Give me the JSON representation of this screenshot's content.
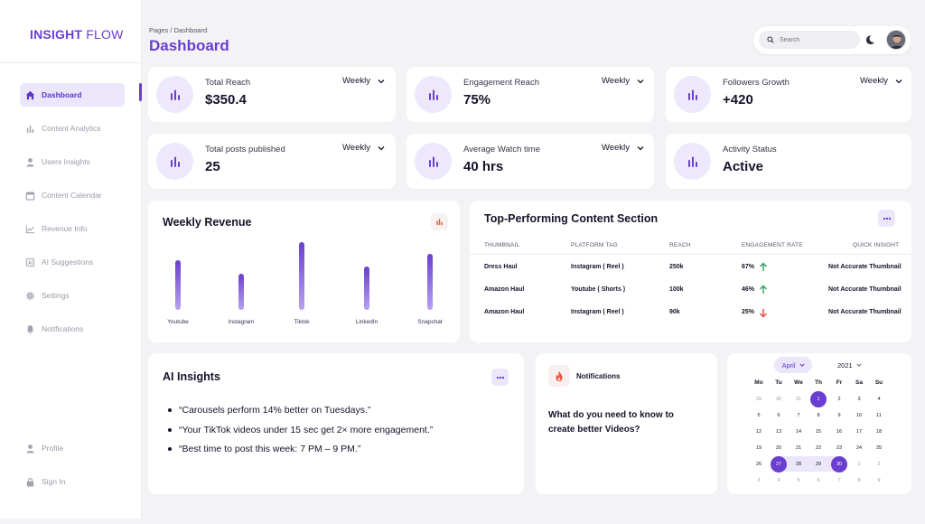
{
  "brand": {
    "bold": "INSIGHT",
    "light": " FLOW"
  },
  "nav": {
    "items": [
      {
        "label": "Dashboard",
        "icon": "home-icon",
        "active": true
      },
      {
        "label": "Content Analytics",
        "icon": "bar-chart-icon"
      },
      {
        "label": "Users Insights",
        "icon": "user-icon"
      },
      {
        "label": "Content Calendar",
        "icon": "calendar-icon"
      },
      {
        "label": "Revenue Info",
        "icon": "line-chart-icon"
      },
      {
        "label": "AI Suggestions",
        "icon": "ai-icon"
      },
      {
        "label": "Settings",
        "icon": "gear-icon"
      },
      {
        "label": "Notifications",
        "icon": "bell-icon"
      }
    ],
    "bottom": [
      {
        "label": "Profile",
        "icon": "user-icon"
      },
      {
        "label": "Sign In",
        "icon": "lock-icon"
      }
    ]
  },
  "header": {
    "breadcrumb": "Pages / Dashboard",
    "title": "Dashboard",
    "search_placeholder": "Search"
  },
  "stats": [
    {
      "label": "Total Reach",
      "value": "$350.4",
      "period": "Weekly"
    },
    {
      "label": "Engagement Reach",
      "value": "75%",
      "period": "Weekly"
    },
    {
      "label": "Followers Growth",
      "value": "+420",
      "period": "Weekly"
    },
    {
      "label": "Total posts published",
      "value": "25",
      "period": "Weekly"
    },
    {
      "label": "Average Watch time",
      "value": "40 hrs",
      "period": "Weekly"
    },
    {
      "label": "Activity Status",
      "value": "Active"
    }
  ],
  "revenue": {
    "title": "Weekly Revenue",
    "chart_data": {
      "type": "bar",
      "title": "Weekly Revenue",
      "categories": [
        "Youtube",
        "Instagram",
        "Tiktok",
        "LinkedIn",
        "Snapchat"
      ],
      "values": [
        55,
        40,
        75,
        48,
        62
      ],
      "ylim": [
        0,
        80
      ],
      "grid": false
    }
  },
  "top_content": {
    "title": "Top-Performing Content Section",
    "columns": [
      "THUMBNAIL",
      "PLATFORM TAG",
      "REACH",
      "ENGAGEMENT RATE",
      "QUICK INSIGHT"
    ],
    "rows": [
      {
        "thumbnail": "Dress Haul",
        "platform": "Instagram ( Reel )",
        "reach": "250k",
        "rate": "67%",
        "trend": "up",
        "insight": "Not Accurate Thumbnail"
      },
      {
        "thumbnail": "Amazon Haul",
        "platform": "Youtube ( Shorts )",
        "reach": "100k",
        "rate": "46%",
        "trend": "up",
        "insight": "Not Accurate Thumbnail"
      },
      {
        "thumbnail": "Amazon Haul",
        "platform": "Instagram ( Reel )",
        "reach": "90k",
        "rate": "25%",
        "trend": "down",
        "insight": "Not Accurate Thumbnail"
      }
    ],
    "colors": {
      "up": "#2ea05a",
      "down": "#e0473a"
    }
  },
  "ai_insights": {
    "title": "AI Insights",
    "items": [
      "“Carousels perform 14% better on Tuesdays.”",
      "“Your TikTok videos under 15 sec get 2× more engagement.”",
      "“Best time to post this week: 7 PM – 9 PM.”"
    ]
  },
  "notifications": {
    "title": "Notifications",
    "question": "What do you need to know to create better Videos?"
  },
  "calendar": {
    "month": "April",
    "year": "2021",
    "weekdays": [
      "Mo",
      "Tu",
      "We",
      "Th",
      "Fr",
      "Sa",
      "Su"
    ],
    "weeks": [
      [
        "29",
        "30",
        "31",
        "1",
        "2",
        "3",
        "4"
      ],
      [
        "5",
        "6",
        "7",
        "8",
        "9",
        "10",
        "11"
      ],
      [
        "12",
        "13",
        "14",
        "15",
        "16",
        "17",
        "18"
      ],
      [
        "19",
        "20",
        "21",
        "22",
        "23",
        "24",
        "25"
      ],
      [
        "26",
        "27",
        "28",
        "29",
        "30",
        "1",
        "2"
      ],
      [
        "3",
        "4",
        "5",
        "6",
        "7",
        "8",
        "9"
      ]
    ],
    "muted": [
      [
        0,
        0
      ],
      [
        0,
        1
      ],
      [
        0,
        2
      ],
      [
        4,
        5
      ],
      [
        4,
        6
      ],
      [
        5,
        0
      ],
      [
        5,
        1
      ],
      [
        5,
        2
      ],
      [
        5,
        3
      ],
      [
        5,
        4
      ],
      [
        5,
        5
      ],
      [
        5,
        6
      ]
    ],
    "selected": [
      [
        0,
        3
      ],
      [
        4,
        1
      ],
      [
        4,
        4
      ]
    ]
  },
  "accent": "#6a3fd0"
}
